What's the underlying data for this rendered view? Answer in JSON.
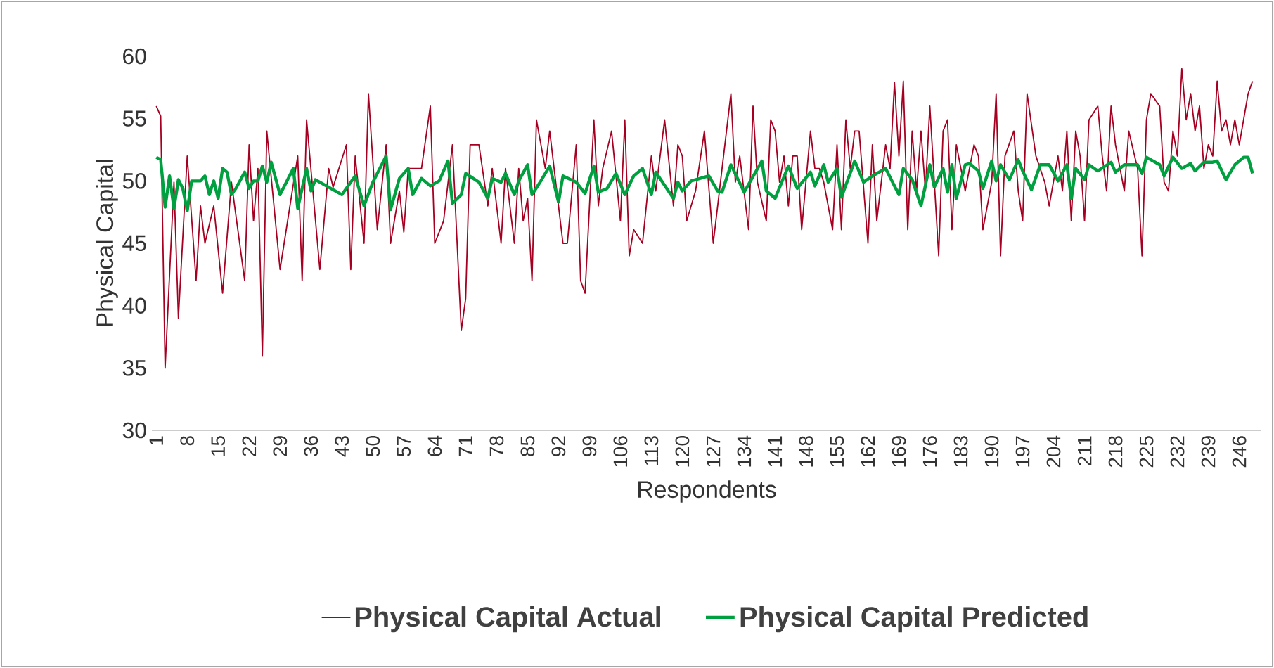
{
  "chart_data": {
    "type": "line",
    "xlabel": "Respondents",
    "ylabel": "Physical Capital",
    "xlim": [
      0,
      251
    ],
    "ylim": [
      30,
      60
    ],
    "xticks": [
      1,
      8,
      15,
      22,
      29,
      36,
      43,
      50,
      57,
      64,
      71,
      78,
      85,
      92,
      99,
      106,
      113,
      120,
      127,
      134,
      141,
      148,
      155,
      162,
      169,
      176,
      183,
      190,
      197,
      204,
      211,
      218,
      225,
      232,
      239,
      246
    ],
    "yticks": [
      30,
      35,
      40,
      45,
      50,
      55,
      60
    ],
    "legend": "bottom",
    "line_style": "solid",
    "series": [
      {
        "name": "Physical Capital Actual",
        "color": "#a50021",
        "x": [
          1,
          2,
          3,
          5,
          6,
          8,
          10,
          11,
          12,
          14,
          16,
          18,
          21,
          22,
          23,
          24,
          25,
          26,
          29,
          33,
          34,
          35,
          38,
          40,
          41,
          44,
          45,
          46,
          48,
          49,
          51,
          53,
          54,
          56,
          57,
          58,
          61,
          63,
          64,
          66,
          68,
          70,
          71,
          72,
          74,
          76,
          77,
          79,
          80,
          82,
          83,
          84,
          85,
          86,
          87,
          89,
          90,
          92,
          93,
          94,
          96,
          97,
          98,
          100,
          101,
          102,
          104,
          106,
          107,
          108,
          109,
          111,
          113,
          114,
          116,
          118,
          119,
          120,
          121,
          123,
          125,
          127,
          130,
          131,
          132,
          133,
          135,
          136,
          137,
          139,
          140,
          141,
          142,
          143,
          144,
          145,
          146,
          147,
          149,
          150,
          151,
          152,
          154,
          155,
          156,
          157,
          158,
          159,
          160,
          162,
          163,
          164,
          166,
          167,
          168,
          169,
          170,
          171,
          172,
          173,
          174,
          175,
          176,
          178,
          179,
          180,
          181,
          182,
          184,
          186,
          187,
          188,
          190,
          191,
          192,
          193,
          195,
          196,
          197,
          198,
          200,
          202,
          203,
          205,
          206,
          207,
          208,
          209,
          210,
          211,
          212,
          214,
          215,
          216,
          217,
          218,
          220,
          221,
          223,
          224,
          225,
          226,
          228,
          229,
          230,
          231,
          232,
          233,
          234,
          235,
          236,
          237,
          238,
          239,
          240,
          241,
          242,
          243,
          244,
          245,
          246,
          248,
          249
        ],
        "values": [
          56,
          55.2,
          35,
          49.9,
          39,
          52,
          42,
          48,
          45,
          48,
          41,
          49.9,
          42,
          52.9,
          46.8,
          51,
          36,
          54,
          42.9,
          52,
          42,
          54.9,
          42.9,
          51,
          49.5,
          52.9,
          42.9,
          52,
          45,
          57,
          46.1,
          52.9,
          45,
          49.2,
          45.9,
          51,
          51,
          56,
          45,
          46.8,
          52.9,
          38,
          40.6,
          52.9,
          52.9,
          48,
          51,
          45,
          51,
          45,
          51,
          46.8,
          48.6,
          42,
          54.9,
          51,
          54,
          48,
          45,
          45,
          52.9,
          42,
          41,
          54.9,
          48,
          51,
          54,
          46.8,
          54.9,
          44,
          46.1,
          45,
          52,
          49.2,
          54.9,
          48,
          52.9,
          52,
          46.8,
          49.2,
          54,
          45,
          54,
          57,
          49.9,
          52,
          46.1,
          56,
          49.9,
          46.8,
          54.9,
          54,
          49.9,
          52,
          48,
          52,
          52,
          46.1,
          54,
          51,
          51,
          49.9,
          46.1,
          52.9,
          46.1,
          54.9,
          51,
          54,
          54,
          45,
          52.9,
          46.8,
          52.9,
          51,
          57.9,
          52,
          58,
          46.1,
          54,
          49.2,
          54,
          49.2,
          56,
          44,
          54,
          54.9,
          46.1,
          52.9,
          49.2,
          52.9,
          52,
          46.1,
          49.9,
          57,
          44,
          52,
          54,
          49.2,
          46.8,
          57,
          52,
          49.9,
          48,
          52,
          49.2,
          54,
          46.8,
          54,
          52,
          46.8,
          54.9,
          56,
          52,
          49.2,
          56,
          52.9,
          49.2,
          54,
          51,
          44,
          54.9,
          57,
          56,
          49.9,
          49.2,
          54,
          52,
          59,
          54.9,
          57,
          54,
          56,
          51,
          52.9,
          52,
          58,
          54,
          54.9,
          52.9,
          54.9,
          52.9,
          57,
          58
        ]
      },
      {
        "name": "Physical Capital Predicted",
        "color": "#00a040",
        "x": [
          1,
          2,
          3,
          4,
          5,
          6,
          7,
          8,
          9,
          11,
          12,
          13,
          14,
          15,
          16,
          17,
          18,
          19,
          21,
          22,
          23,
          24,
          25,
          26,
          27,
          29,
          32,
          33,
          35,
          36,
          37,
          43,
          46,
          48,
          50,
          53,
          54,
          56,
          58,
          59,
          61,
          63,
          65,
          67,
          68,
          70,
          71,
          74,
          76,
          77,
          79,
          80,
          82,
          83,
          85,
          86,
          88,
          90,
          92,
          93,
          96,
          98,
          100,
          101,
          103,
          105,
          107,
          109,
          111,
          113,
          114,
          118,
          119,
          120,
          122,
          126,
          128,
          129,
          131,
          134,
          138,
          139,
          141,
          144,
          146,
          149,
          150,
          152,
          153,
          155,
          156,
          159,
          161,
          163,
          166,
          169,
          170,
          172,
          174,
          176,
          177,
          179,
          180,
          181,
          182,
          184,
          185,
          187,
          188,
          190,
          191,
          192,
          194,
          196,
          197,
          199,
          201,
          203,
          205,
          207,
          208,
          209,
          211,
          212,
          214,
          217,
          218,
          220,
          223,
          224,
          225,
          228,
          229,
          231,
          233,
          235,
          236,
          238,
          240,
          241,
          243,
          245,
          247,
          248,
          249
        ],
        "values": [
          51.9,
          51.7,
          47.9,
          50.4,
          47.8,
          50.1,
          49.4,
          47.6,
          50,
          50,
          50.4,
          48.9,
          50,
          48.6,
          51,
          50.7,
          48.9,
          49.4,
          50.7,
          49.4,
          50,
          50,
          51.2,
          49.9,
          51.5,
          48.9,
          51,
          47.8,
          51,
          49.2,
          50.1,
          48.9,
          50.4,
          48,
          49.9,
          52,
          47.7,
          50.2,
          51,
          48.9,
          50.2,
          49.6,
          50,
          51.6,
          48.2,
          48.9,
          50.6,
          49.9,
          48.6,
          50.2,
          49.9,
          50.6,
          48.9,
          50,
          51.3,
          48.9,
          50,
          51.2,
          48.3,
          50.4,
          49.9,
          49,
          51.2,
          49.1,
          49.4,
          50.6,
          48.9,
          50.4,
          51,
          48.9,
          50.7,
          48.6,
          49.9,
          49.2,
          50,
          50.4,
          49.2,
          49.1,
          51.3,
          49.1,
          51.6,
          49.2,
          48.6,
          51.2,
          49.4,
          50.7,
          49.6,
          51.3,
          49.9,
          51,
          48.7,
          51.6,
          49.9,
          50.4,
          51,
          48.9,
          51,
          50.1,
          48,
          51.3,
          49.5,
          51,
          49.1,
          51.3,
          48.6,
          51.3,
          51.4,
          50.8,
          49.4,
          51.6,
          50,
          51.3,
          50.1,
          51.7,
          50.8,
          49.3,
          51.3,
          51.3,
          50,
          51.3,
          48.6,
          51,
          50.1,
          51.3,
          50.8,
          51.5,
          50.7,
          51.3,
          51.3,
          50.6,
          51.9,
          51.3,
          50.4,
          51.9,
          51,
          51.4,
          50.8,
          51.5,
          51.5,
          51.6,
          50.1,
          51.3,
          51.9,
          51.9,
          50.6
        ]
      }
    ]
  }
}
